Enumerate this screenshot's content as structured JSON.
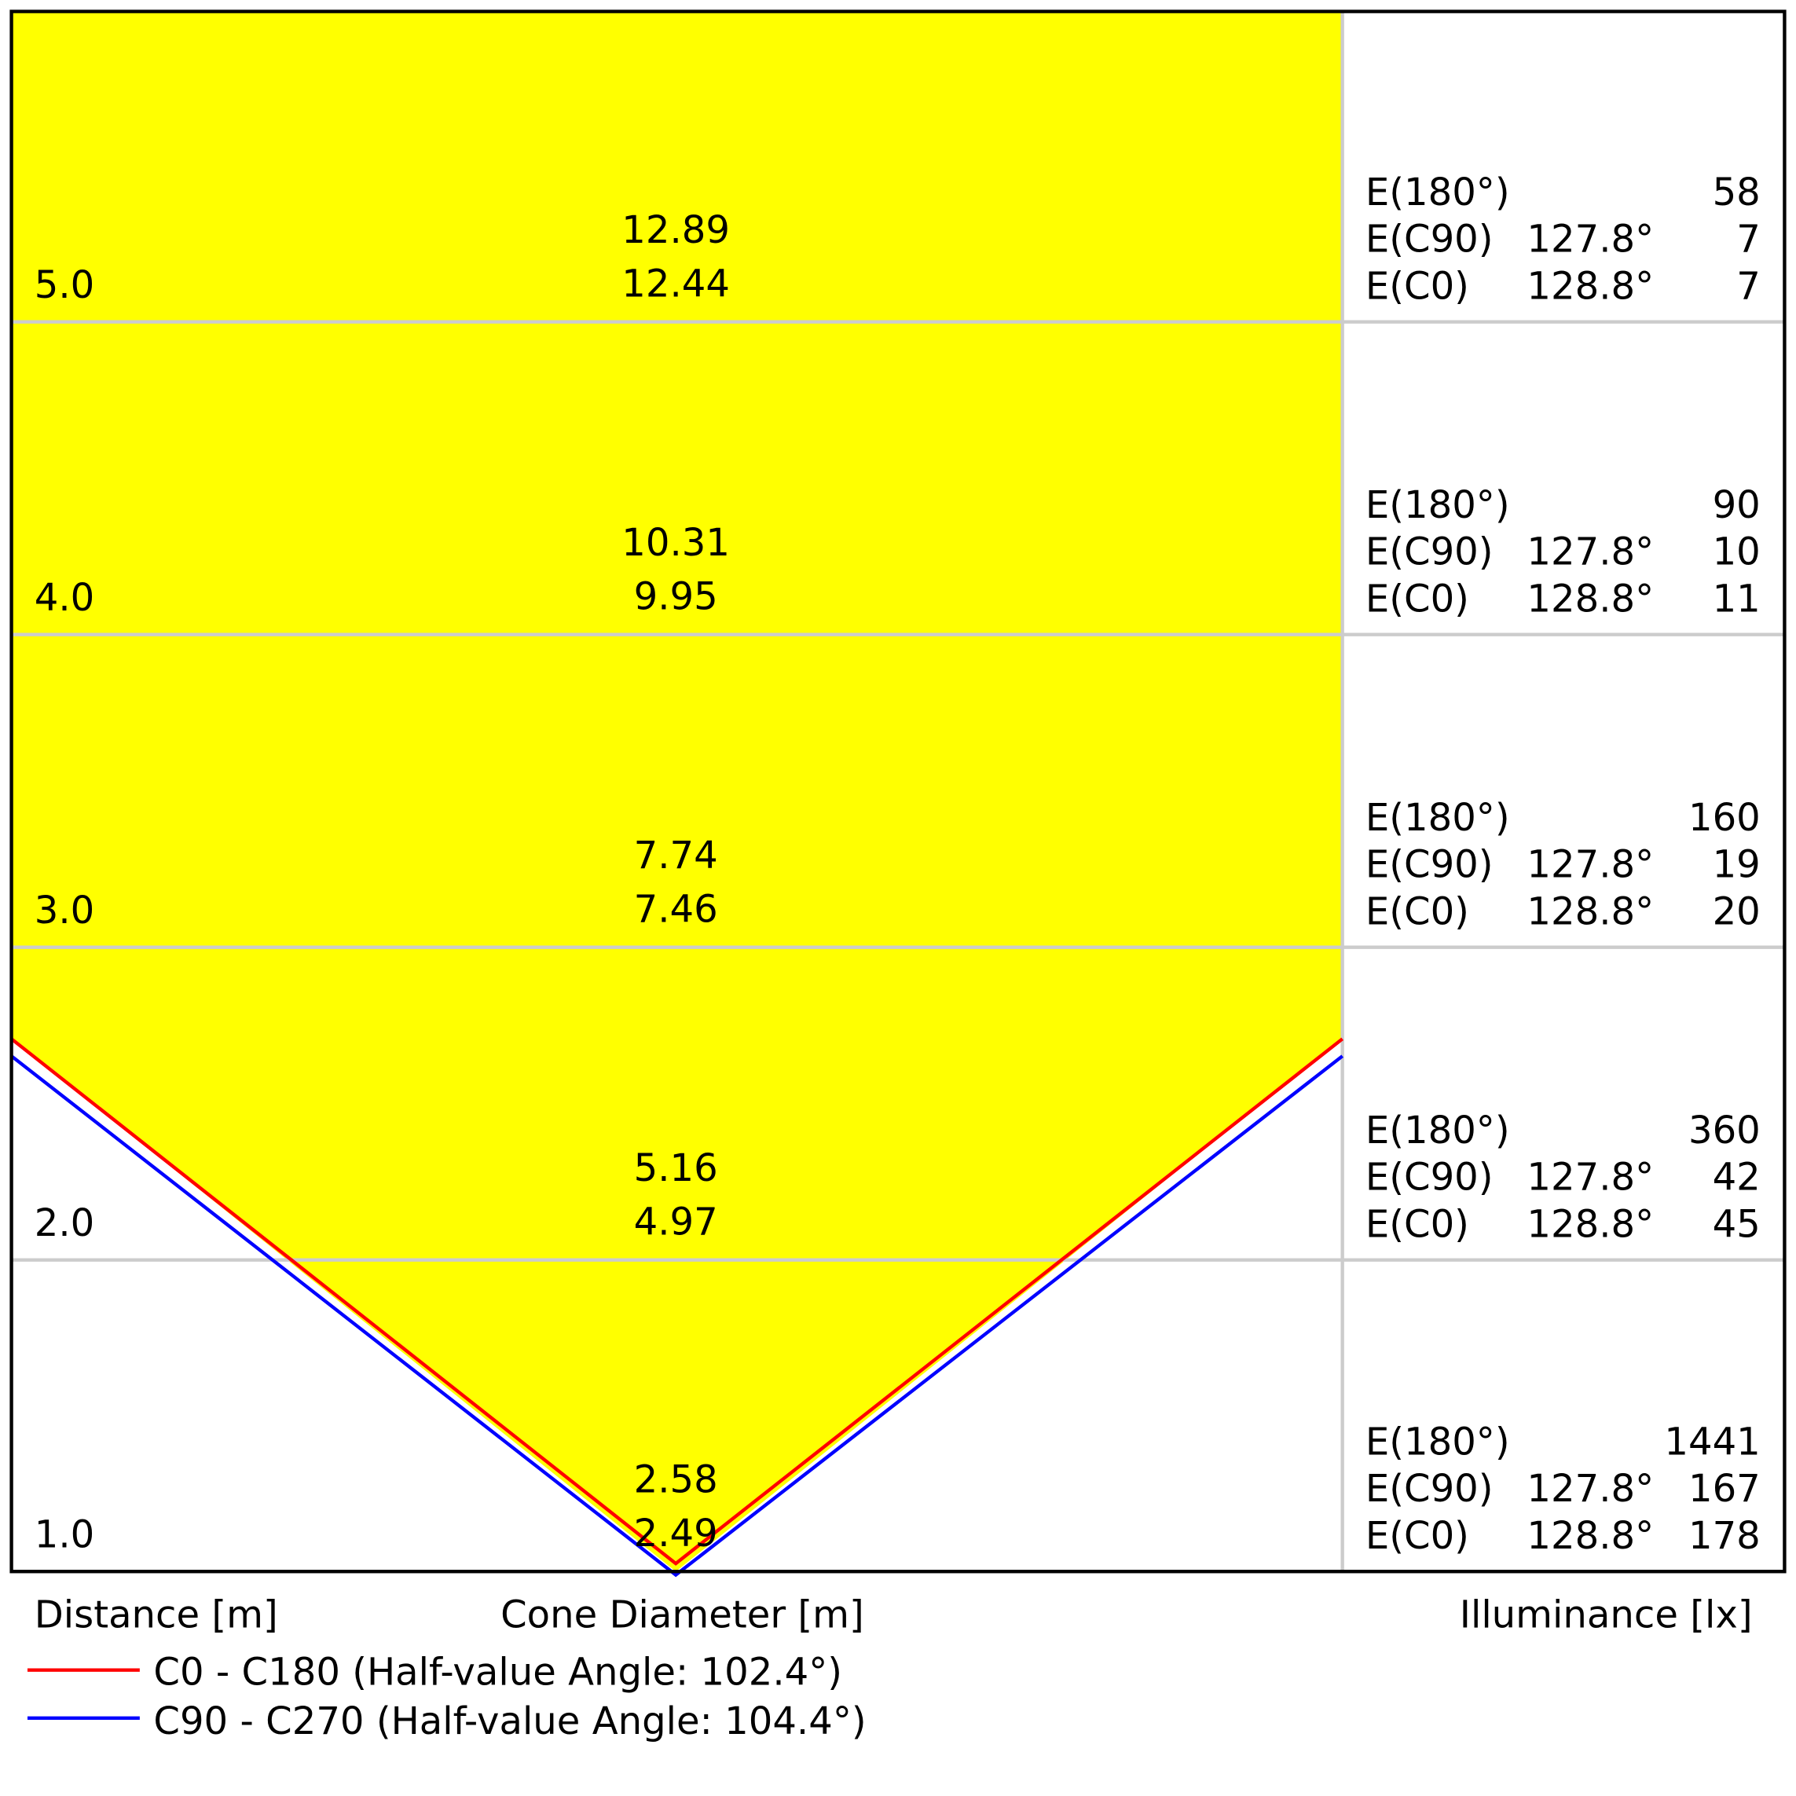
{
  "rows": [
    {
      "distance": "5.0",
      "diameter_top": "12.89",
      "diameter_bottom": "12.44",
      "e180_label": "E(180°)",
      "e180": "58",
      "ec90_label": "E(C90)",
      "ec90_angle": "127.8°",
      "ec90": "7",
      "ec0_label": "E(C0)",
      "ec0_angle": "128.8°",
      "ec0": "7"
    },
    {
      "distance": "4.0",
      "diameter_top": "10.31",
      "diameter_bottom": "9.95",
      "e180_label": "E(180°)",
      "e180": "90",
      "ec90_label": "E(C90)",
      "ec90_angle": "127.8°",
      "ec90": "10",
      "ec0_label": "E(C0)",
      "ec0_angle": "128.8°",
      "ec0": "11"
    },
    {
      "distance": "3.0",
      "diameter_top": "7.74",
      "diameter_bottom": "7.46",
      "e180_label": "E(180°)",
      "e180": "160",
      "ec90_label": "E(C90)",
      "ec90_angle": "127.8°",
      "ec90": "19",
      "ec0_label": "E(C0)",
      "ec0_angle": "128.8°",
      "ec0": "20"
    },
    {
      "distance": "2.0",
      "diameter_top": "5.16",
      "diameter_bottom": "4.97",
      "e180_label": "E(180°)",
      "e180": "360",
      "ec90_label": "E(C90)",
      "ec90_angle": "127.8°",
      "ec90": "42",
      "ec0_label": "E(C0)",
      "ec0_angle": "128.8°",
      "ec0": "45"
    },
    {
      "distance": "1.0",
      "diameter_top": "2.58",
      "diameter_bottom": "2.49",
      "e180_label": "E(180°)",
      "e180": "1441",
      "ec90_label": "E(C90)",
      "ec90_angle": "127.8°",
      "ec90": "167",
      "ec0_label": "E(C0)",
      "ec0_angle": "128.8°",
      "ec0": "178"
    }
  ],
  "axis_labels": {
    "distance": "Distance [m]",
    "diameter": "Cone Diameter [m]",
    "illuminance": "Illuminance [lx]"
  },
  "legend": [
    {
      "label": "C0 - C180 (Half-value Angle: 102.4°)",
      "color": "#ff0000"
    },
    {
      "label": "C90 - C270 (Half-value Angle: 104.4°)",
      "color": "#0000ff"
    }
  ]
}
